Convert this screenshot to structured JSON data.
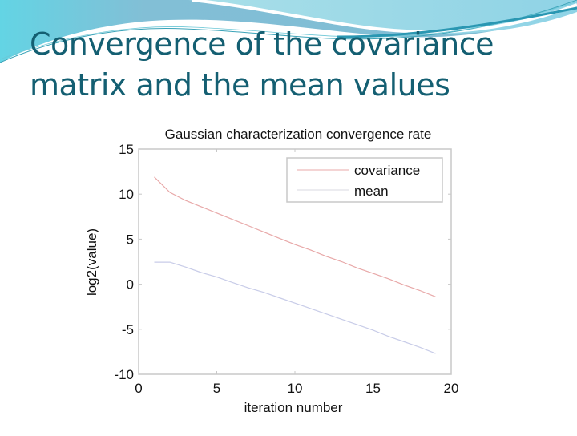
{
  "slide": {
    "title_line1": "Convergence of the covariance",
    "title_line2": "matrix and the mean values",
    "colors": {
      "title": "#145f72",
      "header_band": "#7fbcd4",
      "header_band_light": "#a8dde6",
      "left_accent": "#5fd6e6"
    }
  },
  "chart_data": {
    "type": "line",
    "title": "Gaussian characterization convergence rate",
    "xlabel": "iteration number",
    "ylabel": "log2(value)",
    "xlim": [
      0,
      20
    ],
    "ylim": [
      -10,
      15
    ],
    "xticks": [
      0,
      5,
      10,
      15,
      20
    ],
    "yticks": [
      -10,
      -5,
      0,
      5,
      10,
      15
    ],
    "grid": false,
    "legend_position": "upper right",
    "series": [
      {
        "name": "covariance",
        "color": "#e8a8a8",
        "x": [
          1,
          2,
          3,
          4,
          5,
          6,
          7,
          8,
          9,
          10,
          11,
          12,
          13,
          14,
          15,
          16,
          17,
          18,
          19
        ],
        "values": [
          11.9,
          10.2,
          9.3,
          8.6,
          7.9,
          7.2,
          6.5,
          5.8,
          5.1,
          4.4,
          3.8,
          3.1,
          2.5,
          1.8,
          1.2,
          0.6,
          -0.1,
          -0.7,
          -1.4
        ]
      },
      {
        "name": "mean",
        "color": "#c8cce8",
        "x": [
          1,
          2,
          3,
          4,
          5,
          6,
          7,
          8,
          9,
          10,
          11,
          12,
          13,
          14,
          15,
          16,
          17,
          18,
          19
        ],
        "values": [
          2.45,
          2.45,
          1.9,
          1.3,
          0.8,
          0.2,
          -0.4,
          -0.9,
          -1.5,
          -2.1,
          -2.7,
          -3.3,
          -3.9,
          -4.5,
          -5.1,
          -5.8,
          -6.4,
          -7.0,
          -7.7
        ]
      }
    ]
  }
}
